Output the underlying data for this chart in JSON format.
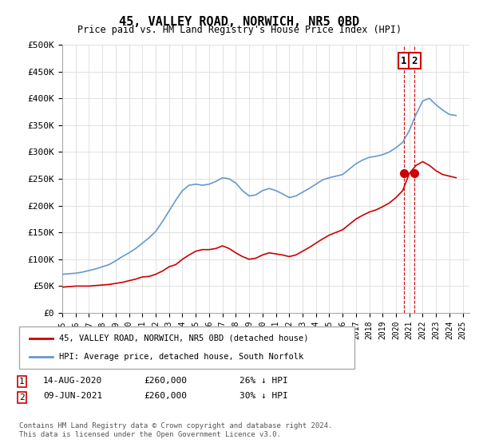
{
  "title": "45, VALLEY ROAD, NORWICH, NR5 0BD",
  "subtitle": "Price paid vs. HM Land Registry's House Price Index (HPI)",
  "ylabel_ticks": [
    "£0",
    "£50K",
    "£100K",
    "£150K",
    "£200K",
    "£250K",
    "£300K",
    "£350K",
    "£400K",
    "£450K",
    "£500K"
  ],
  "ytick_values": [
    0,
    50000,
    100000,
    150000,
    200000,
    250000,
    300000,
    350000,
    400000,
    450000,
    500000
  ],
  "ylim": [
    0,
    500000
  ],
  "xlim_start": 1995.0,
  "xlim_end": 2025.5,
  "legend_line1": "45, VALLEY ROAD, NORWICH, NR5 0BD (detached house)",
  "legend_line2": "HPI: Average price, detached house, South Norfolk",
  "sale1_num": "1",
  "sale1_date": "14-AUG-2020",
  "sale1_price": "£260,000",
  "sale1_hpi": "26% ↓ HPI",
  "sale2_num": "2",
  "sale2_date": "09-JUN-2021",
  "sale2_price": "£260,000",
  "sale2_hpi": "30% ↓ HPI",
  "copyright": "Contains HM Land Registry data © Crown copyright and database right 2024.\nThis data is licensed under the Open Government Licence v3.0.",
  "red_color": "#cc0000",
  "blue_color": "#6699cc",
  "marker1_x": 2020.6,
  "marker2_x": 2021.4,
  "marker_y1": 260000,
  "marker_y2": 260000,
  "vline1_x": 2020.6,
  "vline2_x": 2021.4,
  "hpi_years": [
    1995,
    1995.5,
    1996,
    1996.5,
    1997,
    1997.5,
    1998,
    1998.5,
    1999,
    1999.5,
    2000,
    2000.5,
    2001,
    2001.5,
    2002,
    2002.5,
    2003,
    2003.5,
    2004,
    2004.5,
    2005,
    2005.5,
    2006,
    2006.5,
    2007,
    2007.5,
    2008,
    2008.5,
    2009,
    2009.5,
    2010,
    2010.5,
    2011,
    2011.5,
    2012,
    2012.5,
    2013,
    2013.5,
    2014,
    2014.5,
    2015,
    2015.5,
    2016,
    2016.5,
    2017,
    2017.5,
    2018,
    2018.5,
    2019,
    2019.5,
    2020,
    2020.5,
    2021,
    2021.5,
    2022,
    2022.5,
    2023,
    2023.5,
    2024,
    2024.5
  ],
  "hpi_values": [
    72000,
    73000,
    74000,
    76000,
    79000,
    82000,
    86000,
    90000,
    97000,
    105000,
    112000,
    120000,
    130000,
    140000,
    152000,
    170000,
    190000,
    210000,
    228000,
    238000,
    240000,
    238000,
    240000,
    245000,
    252000,
    250000,
    242000,
    228000,
    218000,
    220000,
    228000,
    232000,
    228000,
    222000,
    215000,
    218000,
    225000,
    232000,
    240000,
    248000,
    252000,
    255000,
    258000,
    268000,
    278000,
    285000,
    290000,
    292000,
    295000,
    300000,
    308000,
    318000,
    340000,
    370000,
    395000,
    400000,
    388000,
    378000,
    370000,
    368000
  ],
  "red_years": [
    1995,
    1995.5,
    1996,
    1996.5,
    1997,
    1997.5,
    1998,
    1998.5,
    1999,
    1999.5,
    2000,
    2000.5,
    2001,
    2001.5,
    2002,
    2002.5,
    2003,
    2003.5,
    2004,
    2004.5,
    2005,
    2005.5,
    2006,
    2006.5,
    2007,
    2007.5,
    2008,
    2008.5,
    2009,
    2009.5,
    2010,
    2010.5,
    2011,
    2011.5,
    2012,
    2012.5,
    2013,
    2013.5,
    2014,
    2014.5,
    2015,
    2015.5,
    2016,
    2016.5,
    2017,
    2017.5,
    2018,
    2018.5,
    2019,
    2019.5,
    2020,
    2020.5,
    2021,
    2021.5,
    2022,
    2022.5,
    2023,
    2023.5,
    2024,
    2024.5
  ],
  "red_values": [
    48000,
    49000,
    50000,
    50000,
    50000,
    51000,
    52000,
    53000,
    55000,
    57000,
    60000,
    63000,
    67000,
    68000,
    72000,
    78000,
    86000,
    90000,
    100000,
    108000,
    115000,
    118000,
    118000,
    120000,
    125000,
    120000,
    112000,
    105000,
    100000,
    102000,
    108000,
    112000,
    110000,
    108000,
    105000,
    108000,
    115000,
    122000,
    130000,
    138000,
    145000,
    150000,
    155000,
    165000,
    175000,
    182000,
    188000,
    192000,
    198000,
    205000,
    215000,
    228000,
    260000,
    275000,
    282000,
    275000,
    265000,
    258000,
    255000,
    252000
  ]
}
